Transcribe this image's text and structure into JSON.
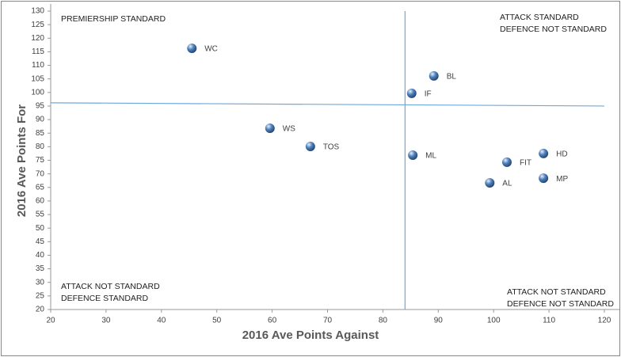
{
  "chart_data": {
    "type": "scatter",
    "x_label": "2016 Ave Points Against",
    "y_label": "2016 Ave Points For",
    "xlim": [
      20,
      120
    ],
    "xticks": [
      20,
      30,
      40,
      50,
      60,
      70,
      80,
      90,
      100,
      110,
      120
    ],
    "ylim": [
      20,
      130
    ],
    "yticks": [
      20,
      25,
      30,
      35,
      40,
      45,
      50,
      55,
      60,
      65,
      70,
      75,
      80,
      85,
      90,
      95,
      100,
      105,
      110,
      115,
      120,
      125,
      130
    ],
    "color": "#4f81bd",
    "labels": [
      "WC",
      "BL",
      "IF",
      "WS",
      "TOS",
      "ML",
      "HD",
      "FIT",
      "MP",
      "AL"
    ],
    "x": [
      45.5,
      89.2,
      85.2,
      59.6,
      66.9,
      85.4,
      109,
      102.4,
      109,
      99.3
    ],
    "y": [
      116.3,
      106.1,
      99.7,
      86.8,
      80.1,
      76.9,
      77.5,
      74.3,
      68.4,
      66.7
    ],
    "reference_lines": [
      {
        "x": [
          20,
          120
        ],
        "y": [
          96.2,
          95
        ],
        "color": "#6fa8dc"
      },
      {
        "x": [
          84,
          84
        ],
        "y": [
          20,
          130
        ],
        "color": "#6fa8dc"
      }
    ],
    "annotations": [
      [
        "PREMIERSHIP STANDARD"
      ],
      [
        "ATTACK STANDARD",
        "DEFENCE NOT STANDARD"
      ],
      [
        "ATTACK NOT STANDARD",
        "DEFENCE STANDARD"
      ],
      [
        "ATTACK NOT STANDARD",
        "DEFENCE NOT STANDARD"
      ]
    ]
  }
}
